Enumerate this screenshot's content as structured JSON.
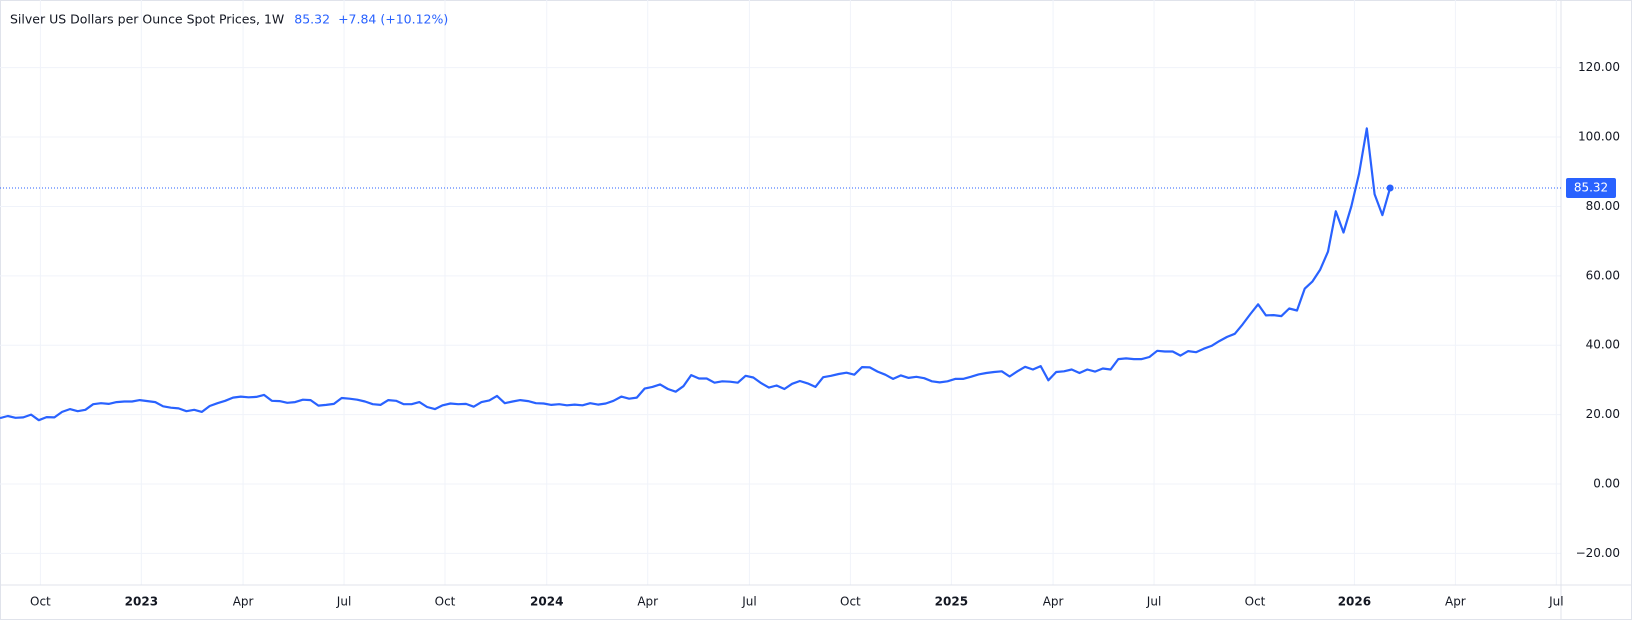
{
  "chart_data": {
    "type": "line",
    "title": "Silver US Dollars per Ounce Spot Prices, 1W",
    "change": "+7.84 (+10.12%)",
    "series": [
      {
        "color": "#2962ff",
        "values": [
          19.0,
          19.6,
          19.1,
          19.2,
          20.0,
          18.4,
          19.3,
          19.2,
          20.8,
          21.6,
          21.0,
          21.4,
          23.0,
          23.3,
          23.1,
          23.6,
          23.8,
          23.8,
          24.2,
          23.9,
          23.6,
          22.4,
          22.0,
          21.8,
          21.0,
          21.4,
          20.8,
          22.5,
          23.3,
          24.0,
          24.9,
          25.2,
          25.0,
          25.1,
          25.7,
          24.0,
          23.9,
          23.4,
          23.6,
          24.3,
          24.2,
          22.6,
          22.8,
          23.1,
          24.8,
          24.6,
          24.3,
          23.8,
          23.0,
          22.8,
          24.2,
          24.0,
          23.0,
          23.0,
          23.6,
          22.2,
          21.6,
          22.7,
          23.2,
          23.0,
          23.1,
          22.3,
          23.6,
          24.1,
          25.4,
          23.3,
          23.8,
          24.2,
          23.9,
          23.3,
          23.2,
          22.8,
          23.0,
          22.7,
          22.9,
          22.7,
          23.3,
          22.9,
          23.2,
          24.0,
          25.2,
          24.6,
          24.9,
          27.5,
          28.0,
          28.7,
          27.4,
          26.6,
          28.2,
          31.4,
          30.4,
          30.4,
          29.2,
          29.6,
          29.5,
          29.2,
          31.2,
          30.7,
          29.1,
          27.8,
          28.4,
          27.4,
          28.9,
          29.7,
          29.0,
          28.0,
          30.8,
          31.2,
          31.7,
          32.1,
          31.5,
          33.7,
          33.6,
          32.4,
          31.5,
          30.3,
          31.3,
          30.6,
          30.9,
          30.5,
          29.6,
          29.3,
          29.6,
          30.3,
          30.3,
          30.9,
          31.6,
          32.0,
          32.3,
          32.5,
          31.0,
          32.5,
          33.8,
          33.0,
          34.0,
          29.9,
          32.3,
          32.5,
          33.0,
          32.0,
          33.0,
          32.4,
          33.3,
          33.0,
          36.0,
          36.2,
          36.0,
          36.0,
          36.6,
          38.4,
          38.2,
          38.2,
          37.0,
          38.3,
          38.0,
          39.0,
          39.8,
          41.2,
          42.4,
          43.3,
          46.0,
          49.0,
          51.8,
          48.6,
          48.7,
          48.4,
          50.6,
          50.0,
          56.3,
          58.4,
          61.8,
          67.0,
          78.6,
          72.5,
          80.0,
          89.5,
          102.5,
          83.5,
          77.5,
          85.32
        ]
      }
    ],
    "xlim": [
      0,
      201
    ],
    "xticks": [
      {
        "value": 5.2,
        "label": "Oct"
      },
      {
        "value": 18.2,
        "label": "2023"
      },
      {
        "value": 31.3,
        "label": "Apr"
      },
      {
        "value": 44.3,
        "label": "Jul"
      },
      {
        "value": 57.3,
        "label": "Oct"
      },
      {
        "value": 70.4,
        "label": "2024"
      },
      {
        "value": 83.4,
        "label": "Apr"
      },
      {
        "value": 96.5,
        "label": "Jul"
      },
      {
        "value": 109.5,
        "label": "Oct"
      },
      {
        "value": 122.5,
        "label": "2025"
      },
      {
        "value": 135.6,
        "label": "Apr"
      },
      {
        "value": 148.6,
        "label": "Jul"
      },
      {
        "value": 161.6,
        "label": "Oct"
      },
      {
        "value": 174.4,
        "label": "2026"
      },
      {
        "value": 187.4,
        "label": "Apr"
      },
      {
        "value": 200.4,
        "label": "Jul"
      }
    ],
    "ylim": [
      -29.1,
      139.5
    ],
    "yticks": [
      {
        "value": -20,
        "label": "−20.00"
      },
      {
        "value": 0,
        "label": "0.00"
      },
      {
        "value": 20,
        "label": "20.00"
      },
      {
        "value": 40,
        "label": "40.00"
      },
      {
        "value": 60,
        "label": "60.00"
      },
      {
        "value": 80,
        "label": "80.00"
      },
      {
        "value": 100,
        "label": "100.00"
      },
      {
        "value": 120,
        "label": "120.00"
      }
    ],
    "grid": true
  }
}
